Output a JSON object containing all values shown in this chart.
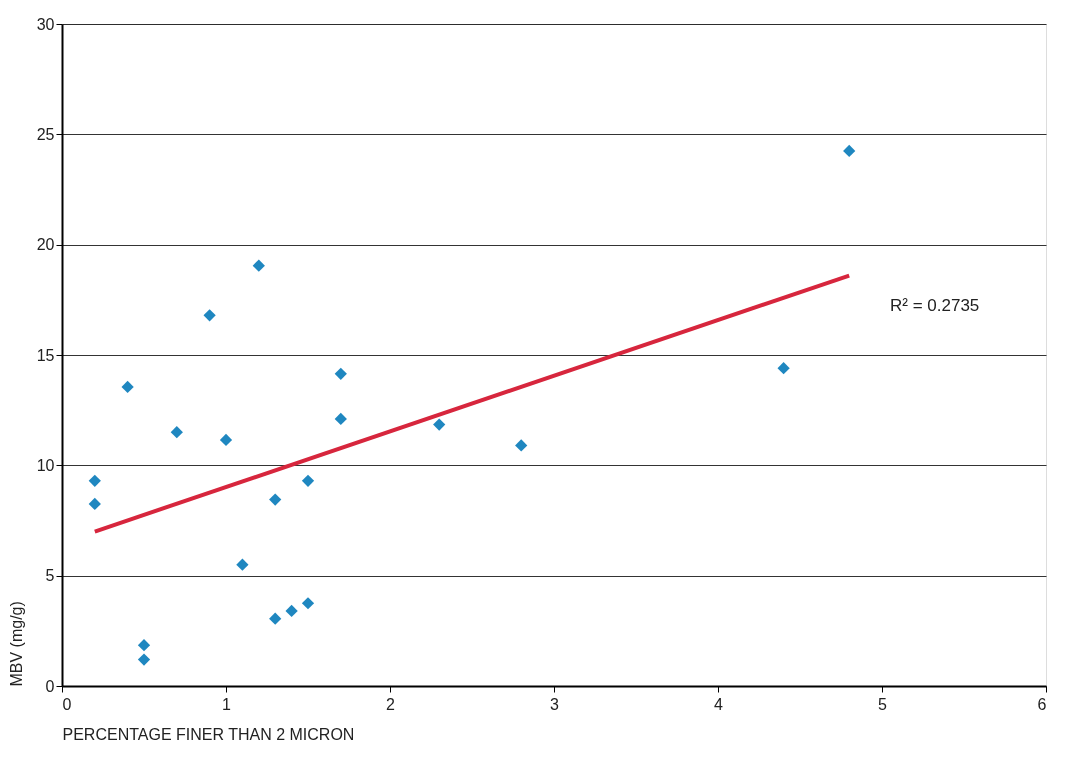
{
  "chart_data": {
    "type": "scatter",
    "xlabel": "PERCENTAGE FINER THAN 2 MICRON",
    "ylabel": "MBV (mg/g)",
    "xlim": [
      0,
      6
    ],
    "xticks": [
      0,
      1,
      2,
      3,
      4,
      5,
      6
    ],
    "ylim": [
      0,
      30
    ],
    "yticks": [
      0,
      5,
      10,
      15,
      20,
      25,
      30
    ],
    "grid": "y",
    "marker": "diamond",
    "annotations": [
      "R² = 0.2735"
    ],
    "series": [
      {
        "color": "#1f87c0",
        "x": [
          0.2,
          0.2,
          0.4,
          0.5,
          0.5,
          0.7,
          0.9,
          1.0,
          1.1,
          1.2,
          1.3,
          1.3,
          1.4,
          1.5,
          1.5,
          1.7,
          1.7,
          2.3,
          2.8,
          4.4,
          4.8
        ],
        "values": [
          9.3,
          8.25,
          13.55,
          1.85,
          1.2,
          11.5,
          16.8,
          11.15,
          5.5,
          19.05,
          8.45,
          3.05,
          3.4,
          9.3,
          3.75,
          14.15,
          12.1,
          11.85,
          10.9,
          14.4,
          24.25
        ]
      },
      {
        "type": "line",
        "marker": "none",
        "line_style": "solid",
        "color": "#d7263d",
        "x": [
          0.2,
          4.8
        ],
        "values": [
          7.0,
          18.6
        ]
      }
    ]
  }
}
